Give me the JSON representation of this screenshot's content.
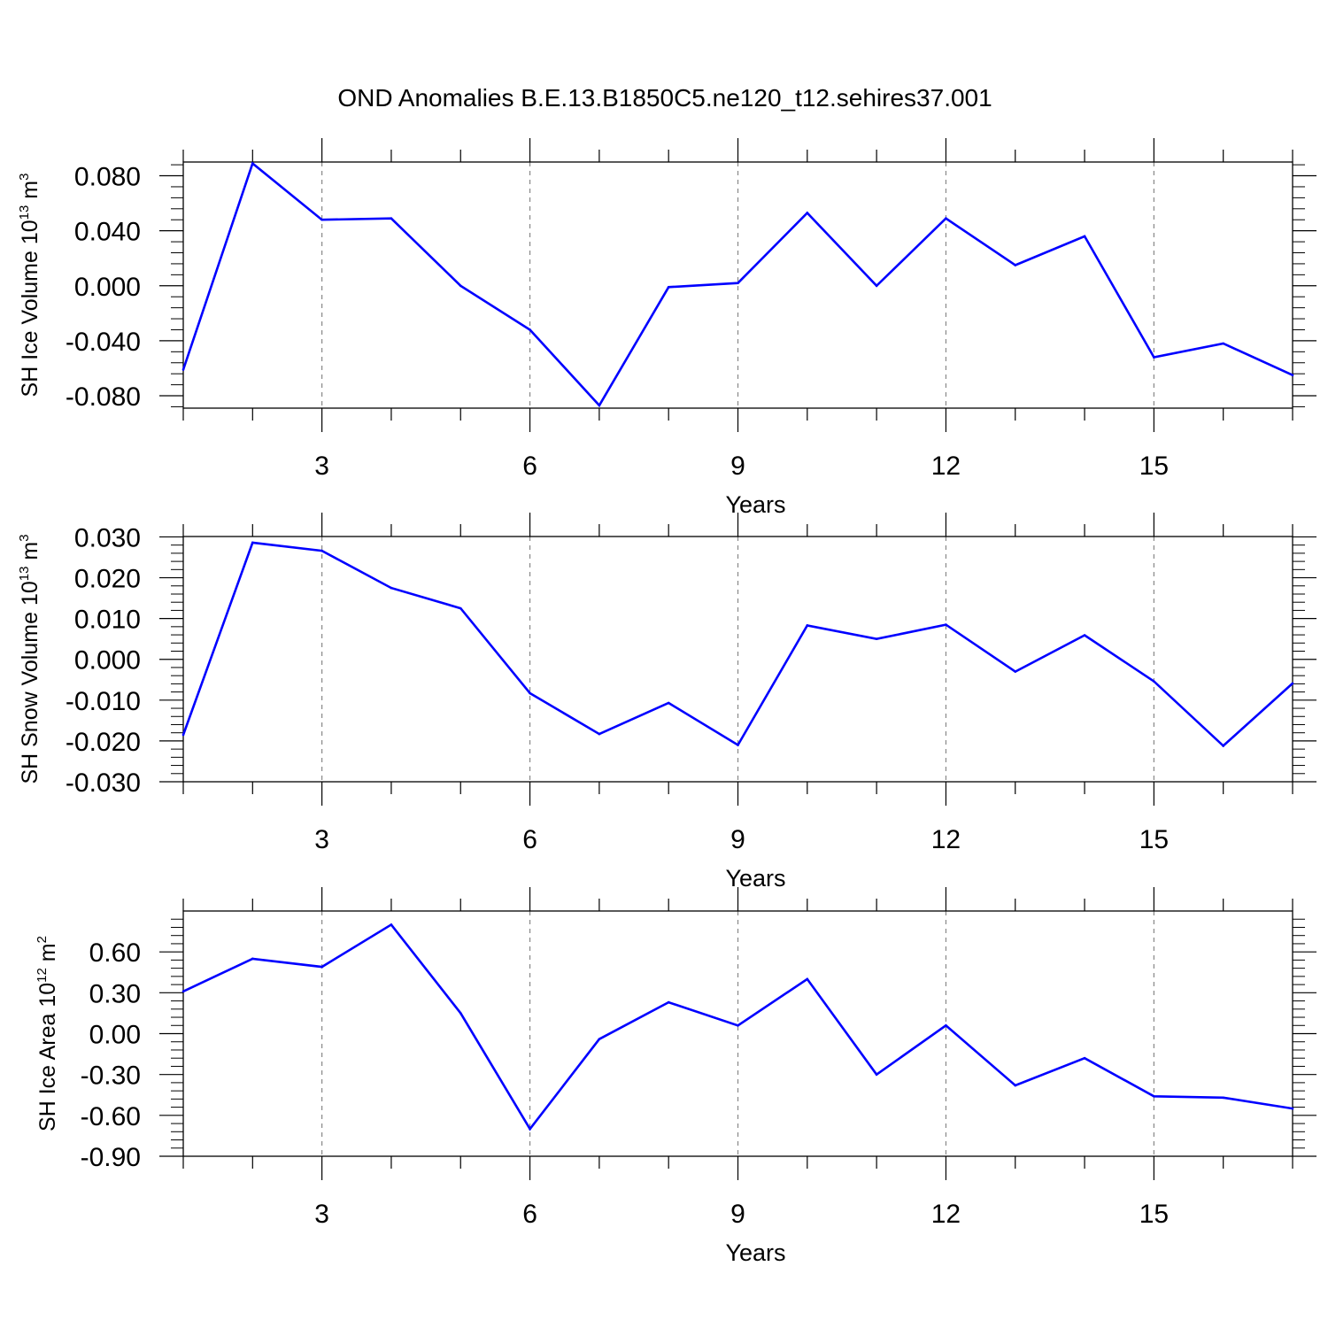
{
  "figure_title": "OND Anomalies B.E.13.B1850C5.ne120_t12.sehires37.001",
  "line_color": "#0000ff",
  "grid_color": "#888888",
  "chart_data": [
    {
      "type": "line",
      "title": "",
      "ylabel_text": "SH Ice Volume 10",
      "ylabel_exp": "13",
      "ylabel_unit": "m",
      "ylabel_unit_exp": "3",
      "xlabel": "Years",
      "xlim": [
        1,
        17
      ],
      "ylim": [
        -0.089,
        0.09
      ],
      "xticks": [
        3,
        6,
        9,
        12,
        15
      ],
      "xtick_labels": [
        "3",
        "6",
        "9",
        "12",
        "15"
      ],
      "yticks": [
        0.08,
        0.04,
        0.0,
        -0.04,
        -0.08
      ],
      "ytick_labels": [
        "0.080",
        "0.040",
        "0.000",
        "-0.040",
        "-0.080"
      ],
      "series": [
        {
          "name": "SH Ice Volume",
          "x": [
            1,
            2,
            3,
            4,
            5,
            6,
            7,
            8,
            9,
            10,
            11,
            12,
            13,
            14,
            15,
            16,
            17
          ],
          "values": [
            -0.061,
            0.089,
            0.048,
            0.049,
            0.0,
            -0.032,
            -0.087,
            -0.001,
            0.002,
            0.053,
            0.0,
            0.049,
            0.015,
            0.036,
            -0.052,
            -0.042,
            -0.065
          ]
        }
      ]
    },
    {
      "type": "line",
      "title": "",
      "ylabel_text": "SH Snow Volume 10",
      "ylabel_exp": "13",
      "ylabel_unit": "m",
      "ylabel_unit_exp": "3",
      "xlabel": "Years",
      "xlim": [
        1,
        17
      ],
      "ylim": [
        -0.03,
        0.0301
      ],
      "xticks": [
        3,
        6,
        9,
        12,
        15
      ],
      "xtick_labels": [
        "3",
        "6",
        "9",
        "12",
        "15"
      ],
      "yticks": [
        0.03,
        0.02,
        0.01,
        0.0,
        -0.01,
        -0.02,
        -0.03
      ],
      "ytick_labels": [
        "0.030",
        "0.020",
        "0.010",
        "0.000",
        "-0.010",
        "-0.020",
        "-0.030"
      ],
      "series": [
        {
          "name": "SH Snow Volume",
          "x": [
            1,
            2,
            3,
            4,
            5,
            6,
            7,
            8,
            9,
            10,
            11,
            12,
            13,
            14,
            15,
            16,
            17
          ],
          "values": [
            -0.0185,
            0.0286,
            0.0266,
            0.0175,
            0.0125,
            -0.0083,
            -0.0183,
            -0.0107,
            -0.021,
            0.0083,
            0.005,
            0.0085,
            -0.003,
            0.0059,
            -0.0054,
            -0.0212,
            -0.0059
          ]
        }
      ]
    },
    {
      "type": "line",
      "title": "",
      "ylabel_text": "SH Ice Area 10",
      "ylabel_exp": "12",
      "ylabel_unit": "m",
      "ylabel_unit_exp": "2",
      "xlabel": "Years",
      "xlim": [
        1,
        17
      ],
      "ylim": [
        -0.9,
        0.9
      ],
      "xticks": [
        3,
        6,
        9,
        12,
        15
      ],
      "xtick_labels": [
        "3",
        "6",
        "9",
        "12",
        "15"
      ],
      "yticks": [
        0.6,
        0.3,
        0.0,
        -0.3,
        -0.6,
        -0.9
      ],
      "ytick_labels": [
        "0.60",
        "0.30",
        "0.00",
        "-0.30",
        "-0.60",
        "-0.90"
      ],
      "series": [
        {
          "name": "SH Ice Area",
          "x": [
            1,
            2,
            3,
            4,
            5,
            6,
            7,
            8,
            9,
            10,
            11,
            12,
            13,
            14,
            15,
            16,
            17
          ],
          "values": [
            0.31,
            0.55,
            0.49,
            0.8,
            0.15,
            -0.7,
            -0.04,
            0.23,
            0.06,
            0.4,
            -0.3,
            0.06,
            -0.38,
            -0.18,
            -0.46,
            -0.47,
            -0.55
          ]
        }
      ]
    }
  ]
}
